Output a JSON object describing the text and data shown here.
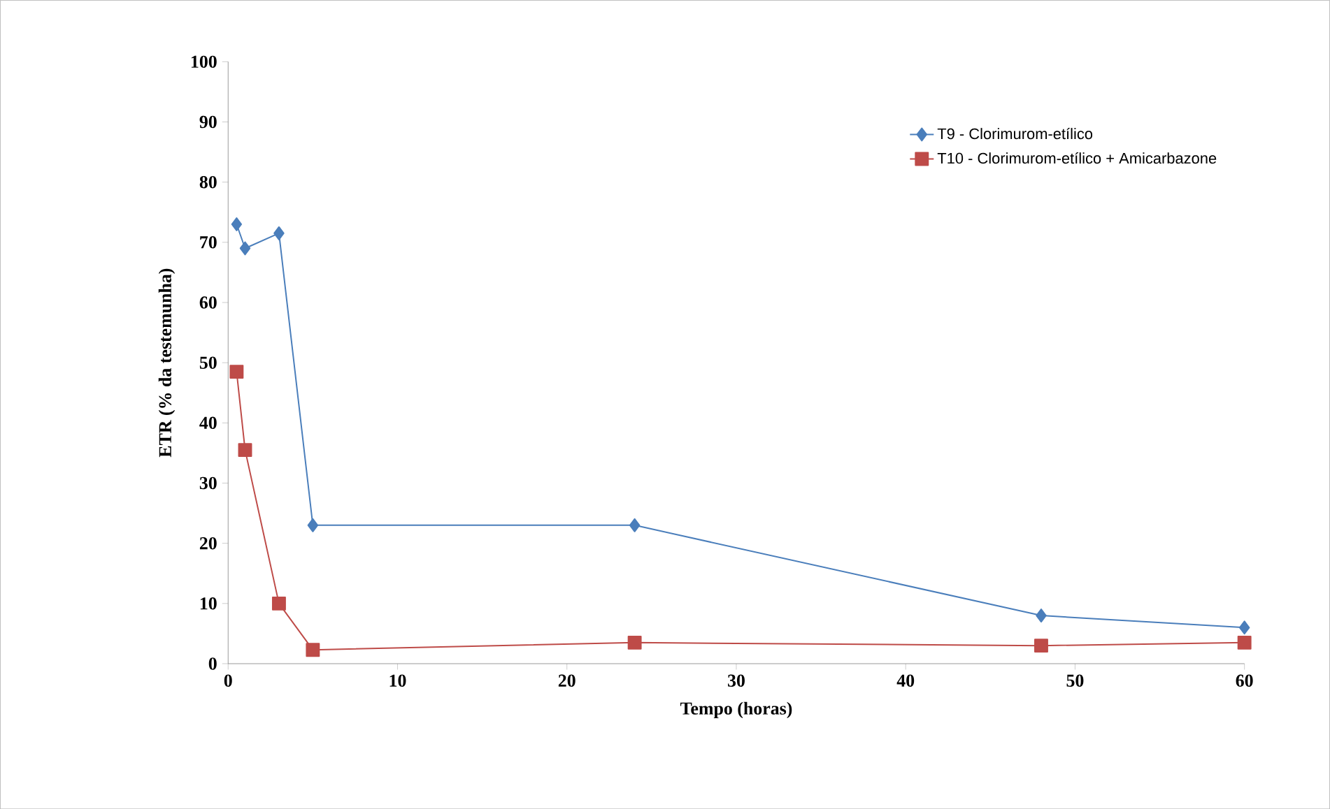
{
  "chart_data": {
    "type": "line",
    "xlabel": "Tempo (horas)",
    "ylabel": "ETR (% da testemunha)",
    "series": [
      {
        "name": "T9 - Clorimurom-etílico",
        "color": "#4a7ebb",
        "marker": "diamond",
        "x": [
          0.5,
          1,
          3,
          5,
          24,
          48,
          60
        ],
        "values": [
          73,
          69,
          71.5,
          23,
          23,
          8,
          6
        ]
      },
      {
        "name": "T10 - Clorimurom-etílico + Amicarbazone",
        "color": "#be4b48",
        "marker": "square",
        "x": [
          0.5,
          1,
          3,
          5,
          24,
          48,
          60
        ],
        "values": [
          48.5,
          35.5,
          10,
          2.3,
          3.5,
          3,
          3.5
        ]
      }
    ],
    "xlim": [
      0,
      60
    ],
    "xticks": [
      0,
      10,
      20,
      30,
      40,
      50,
      60
    ],
    "ylim": [
      0,
      100
    ],
    "yticks": [
      0,
      10,
      20,
      30,
      40,
      50,
      60,
      70,
      80,
      90,
      100
    ],
    "grid": false,
    "legend": "top right"
  }
}
